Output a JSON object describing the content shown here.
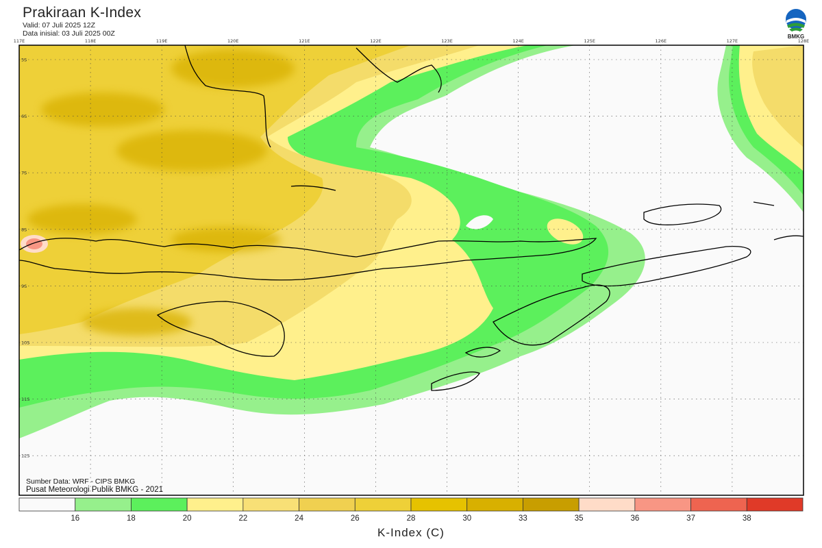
{
  "header": {
    "title": "Prakiraan K-Index",
    "valid": "Valid: 07 Juli 2025 12Z",
    "initial": "Data inisial: 03 Juli 2025 00Z",
    "logo_text": "BMKG"
  },
  "map": {
    "lon_labels": [
      "117E",
      "118E",
      "119E",
      "120E",
      "121E",
      "122E",
      "123E",
      "124E",
      "125E",
      "126E",
      "127E",
      "128E"
    ],
    "lat_labels": [
      "5S",
      "6S",
      "7S",
      "8S",
      "9S",
      "10S",
      "11S",
      "12S"
    ]
  },
  "footer": {
    "source": "Sumber Data: WRF - CIPS BMKG",
    "credit": "Pusat Meteorologi Publik BMKG - 2021"
  },
  "legend": {
    "title": "K-Index (C)",
    "thresholds": [
      "16",
      "18",
      "20",
      "22",
      "24",
      "26",
      "28",
      "30",
      "33",
      "35",
      "36",
      "37",
      "38"
    ],
    "colors": [
      "#fafafa",
      "#96f08c",
      "#5cf05c",
      "#fff08c",
      "#f8e076",
      "#f0d050",
      "#eed038",
      "#e6c200",
      "#d8b000",
      "#c89e00",
      "#ffdcc8",
      "#f89684",
      "#ee6450",
      "#e03a28"
    ]
  },
  "colors": {
    "land_outline": "#000000",
    "frame": "#000000"
  }
}
